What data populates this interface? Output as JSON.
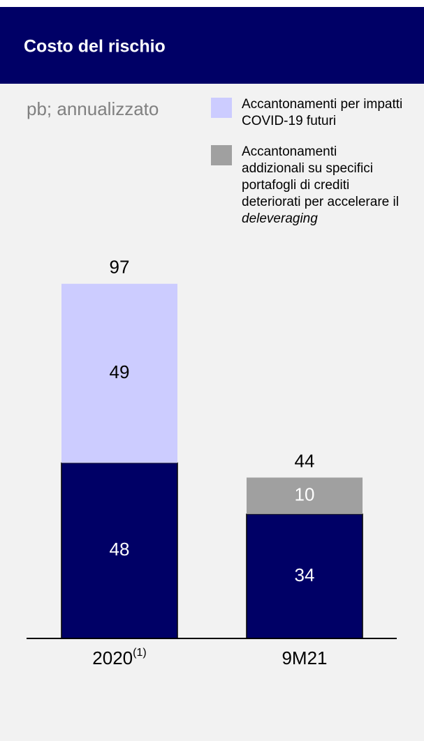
{
  "chart_data": {
    "type": "stacked_bar",
    "title": "Costo del rischio",
    "subtitle": "pb; annualizzato",
    "categories": [
      "2020",
      "9M21"
    ],
    "category_notes": [
      "(1)",
      null
    ],
    "series": [
      {
        "color": "#000066",
        "values": [
          48,
          34
        ]
      },
      {
        "name": "Accantonamenti per impatti COVID-19 futuri",
        "color": "#ccccff",
        "values": [
          49,
          null
        ]
      },
      {
        "name": "Accantonamenti addizionali su specifici portafogli di crediti deteriorati per accelerare il",
        "name_italic": "deleveraging",
        "color": "#a0a0a0",
        "values": [
          null,
          10
        ]
      }
    ],
    "totals": [
      97,
      44
    ],
    "ylim": [
      0,
      100
    ]
  }
}
